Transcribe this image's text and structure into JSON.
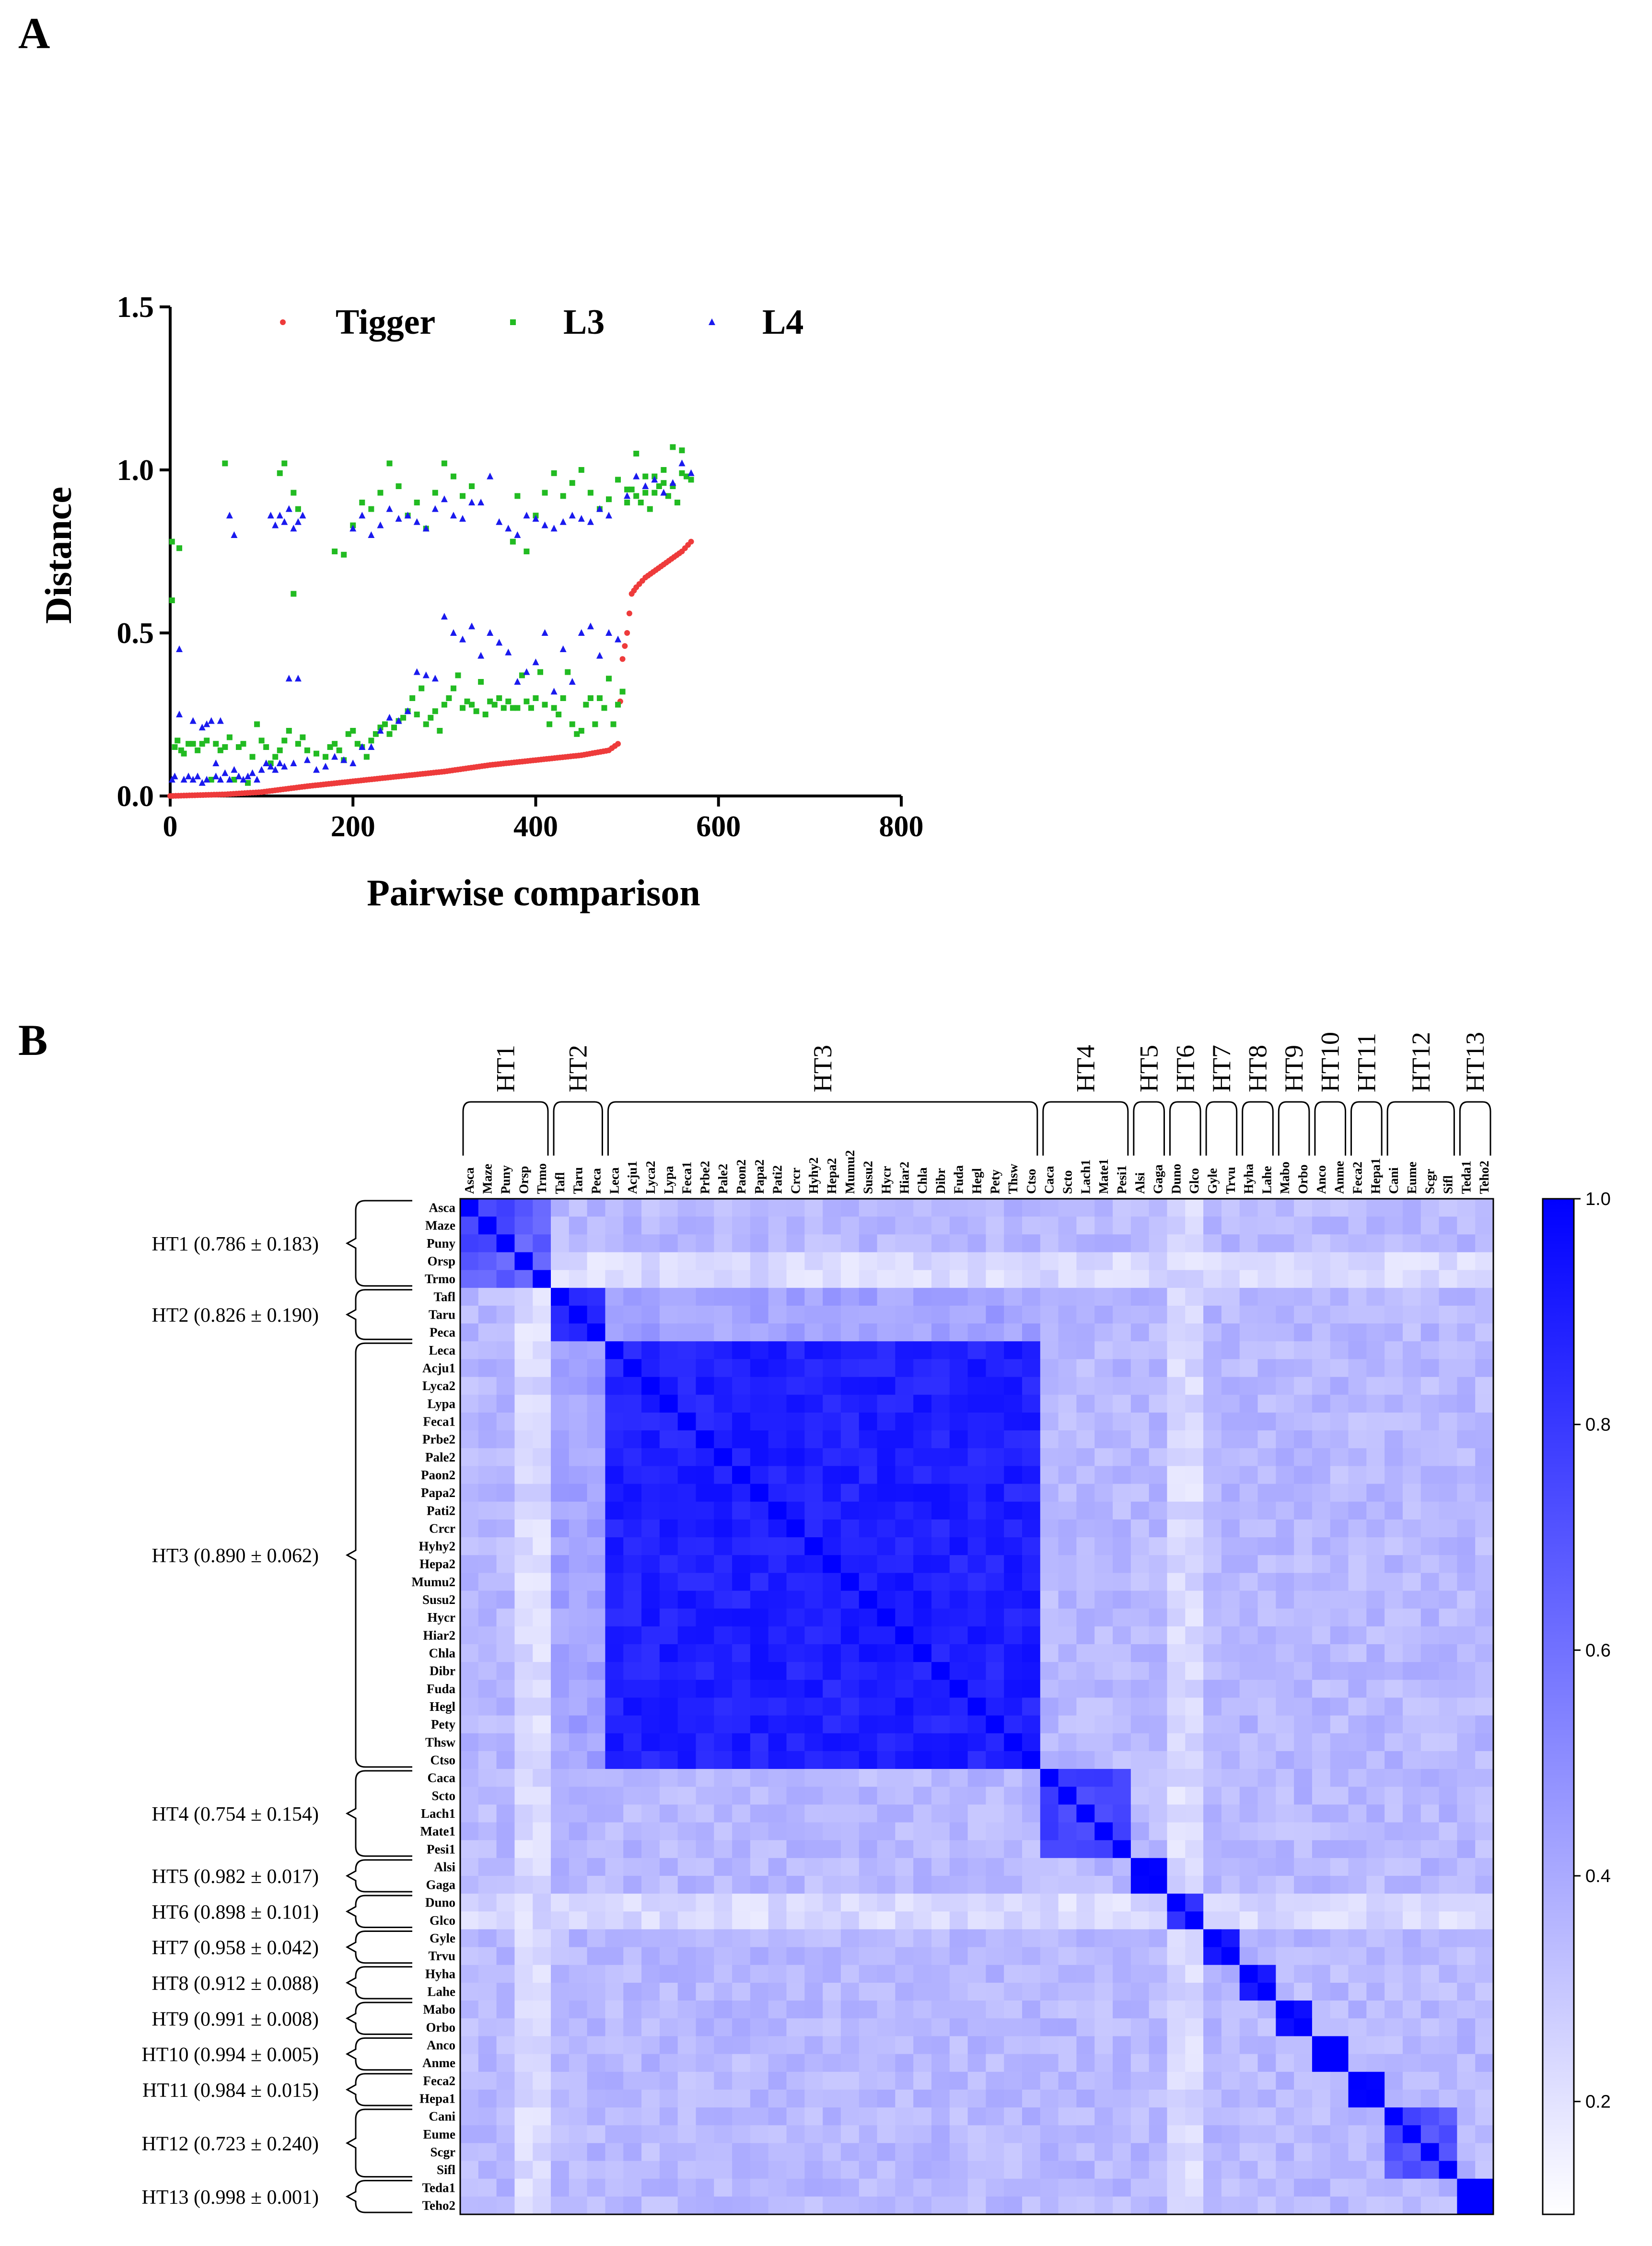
{
  "panel_labels": {
    "a": "A",
    "b": "B"
  },
  "chart_data": [
    {
      "type": "scatter",
      "title": "",
      "xlabel": "Pairwise comparison",
      "ylabel": "Distance",
      "xlim": [
        0,
        800
      ],
      "ylim": [
        0,
        1.5
      ],
      "x_ticks": [
        0,
        200,
        400,
        600,
        800
      ],
      "y_ticks": [
        0.0,
        0.5,
        1.0,
        1.5
      ],
      "x_tick_labels": [
        "0",
        "200",
        "400",
        "600",
        "800"
      ],
      "y_tick_labels": [
        "0.0",
        "0.5",
        "1.0",
        "1.5"
      ],
      "legend_position": "top",
      "series": [
        {
          "name": "Tigger",
          "color": "#ee3b3b",
          "marker": "circle",
          "note": "monotonic increasing curve, ~570 points",
          "x": [
            0,
            60,
            100,
            150,
            200,
            250,
            300,
            350,
            400,
            450,
            480,
            490,
            495,
            500,
            505,
            510,
            520,
            540,
            560,
            570
          ],
          "y": [
            0.0,
            0.005,
            0.012,
            0.03,
            0.045,
            0.06,
            0.075,
            0.095,
            0.11,
            0.125,
            0.14,
            0.16,
            0.42,
            0.5,
            0.62,
            0.64,
            0.67,
            0.71,
            0.75,
            0.78
          ]
        },
        {
          "name": "L3",
          "color": "#22bb22",
          "marker": "square",
          "x": [
            2,
            5,
            8,
            12,
            15,
            20,
            25,
            30,
            35,
            40,
            45,
            50,
            55,
            60,
            65,
            70,
            75,
            80,
            85,
            90,
            95,
            100,
            105,
            110,
            115,
            120,
            125,
            130,
            135,
            140,
            145,
            150,
            160,
            170,
            175,
            180,
            185,
            190,
            195,
            200,
            205,
            210,
            215,
            220,
            225,
            230,
            235,
            240,
            245,
            250,
            255,
            260,
            265,
            270,
            275,
            280,
            285,
            290,
            295,
            300,
            305,
            310,
            315,
            320,
            325,
            330,
            335,
            340,
            345,
            350,
            355,
            360,
            365,
            370,
            375,
            380,
            385,
            390,
            395,
            400,
            405,
            410,
            415,
            420,
            425,
            430,
            435,
            440,
            445,
            450,
            455,
            460,
            465,
            470,
            475,
            480,
            485,
            490,
            495,
            500,
            505,
            510,
            515,
            520,
            525,
            530,
            535,
            540,
            545,
            550,
            555,
            560,
            565,
            570,
            2,
            10,
            60,
            120,
            125,
            135,
            140,
            180,
            190,
            200,
            210,
            220,
            230,
            240,
            250,
            260,
            270,
            280,
            290,
            300,
            310,
            320,
            330,
            375,
            380,
            390,
            400,
            410,
            420,
            430,
            440,
            450,
            460,
            470,
            480,
            490,
            500,
            510,
            520,
            530,
            540,
            550,
            560
          ],
          "y": [
            0.6,
            0.15,
            0.17,
            0.14,
            0.13,
            0.16,
            0.16,
            0.14,
            0.16,
            0.17,
            0.05,
            0.16,
            0.14,
            0.15,
            0.18,
            0.05,
            0.15,
            0.16,
            0.04,
            0.12,
            0.22,
            0.17,
            0.15,
            0.1,
            0.12,
            0.14,
            0.17,
            0.2,
            0.62,
            0.16,
            0.18,
            0.14,
            0.13,
            0.12,
            0.15,
            0.16,
            0.14,
            0.11,
            0.19,
            0.2,
            0.16,
            0.15,
            0.12,
            0.17,
            0.19,
            0.21,
            0.22,
            0.19,
            0.21,
            0.23,
            0.24,
            0.26,
            0.3,
            0.25,
            0.33,
            0.22,
            0.24,
            0.26,
            0.2,
            0.28,
            0.3,
            0.33,
            0.37,
            0.27,
            0.29,
            0.28,
            0.26,
            0.35,
            0.25,
            0.29,
            0.28,
            0.3,
            0.27,
            0.29,
            0.27,
            0.27,
            0.37,
            0.29,
            0.27,
            0.3,
            0.38,
            0.28,
            0.22,
            0.27,
            0.25,
            0.3,
            0.38,
            0.22,
            0.19,
            0.2,
            0.28,
            0.3,
            0.22,
            0.3,
            0.27,
            0.36,
            0.22,
            0.28,
            0.32,
            0.9,
            0.94,
            0.92,
            0.9,
            0.98,
            0.88,
            0.93,
            0.95,
            0.96,
            0.92,
            1.07,
            0.9,
            1.06,
            0.98,
            0.97,
            0.78,
            0.76,
            1.02,
            0.99,
            1.02,
            0.93,
            0.88,
            0.75,
            0.74,
            0.83,
            0.9,
            0.88,
            0.93,
            1.02,
            0.95,
            0.86,
            0.9,
            0.82,
            0.93,
            1.02,
            0.98,
            0.92,
            0.95,
            0.78,
            0.92,
            0.75,
            0.86,
            0.93,
            0.99,
            0.92,
            0.96,
            1.0,
            0.93,
            0.88,
            0.91,
            0.97,
            0.94,
            1.05,
            0.93,
            0.98,
            1.0,
            0.95,
            0.99
          ]
        },
        {
          "name": "L4",
          "color": "#1a1aee",
          "marker": "triangle",
          "x": [
            2,
            5,
            10,
            15,
            20,
            25,
            30,
            35,
            40,
            45,
            50,
            55,
            60,
            65,
            70,
            75,
            80,
            85,
            90,
            95,
            100,
            105,
            110,
            115,
            120,
            125,
            130,
            135,
            140,
            150,
            160,
            170,
            180,
            190,
            200,
            210,
            220,
            230,
            240,
            250,
            260,
            270,
            280,
            290,
            300,
            310,
            320,
            330,
            340,
            350,
            360,
            370,
            380,
            390,
            400,
            410,
            420,
            430,
            440,
            450,
            460,
            470,
            480,
            490,
            500,
            510,
            520,
            530,
            540,
            550,
            560,
            570,
            10,
            25,
            35,
            40,
            50,
            55,
            65,
            70,
            110,
            115,
            120,
            125,
            130,
            135,
            140,
            145,
            200,
            210,
            220,
            230,
            240,
            250,
            260,
            270,
            280,
            290,
            300,
            310,
            320,
            330,
            340,
            350,
            360,
            370,
            380,
            390,
            400,
            410,
            420,
            430,
            440,
            450,
            460,
            470,
            480
          ],
          "y": [
            0.05,
            0.06,
            0.25,
            0.05,
            0.06,
            0.05,
            0.06,
            0.04,
            0.05,
            0.23,
            0.06,
            0.05,
            0.07,
            0.05,
            0.08,
            0.06,
            0.05,
            0.06,
            0.07,
            0.05,
            0.08,
            0.1,
            0.09,
            0.08,
            0.1,
            0.09,
            0.36,
            0.1,
            0.36,
            0.11,
            0.08,
            0.09,
            0.12,
            0.11,
            0.1,
            0.15,
            0.15,
            0.2,
            0.24,
            0.23,
            0.26,
            0.38,
            0.37,
            0.36,
            0.55,
            0.5,
            0.48,
            0.52,
            0.43,
            0.5,
            0.47,
            0.44,
            0.35,
            0.38,
            0.41,
            0.5,
            0.32,
            0.45,
            0.35,
            0.5,
            0.52,
            0.43,
            0.5,
            0.48,
            0.92,
            0.98,
            0.95,
            0.97,
            0.93,
            0.96,
            1.02,
            0.99,
            0.45,
            0.23,
            0.21,
            0.22,
            0.1,
            0.23,
            0.86,
            0.8,
            0.86,
            0.83,
            0.86,
            0.84,
            0.88,
            0.82,
            0.84,
            0.86,
            0.82,
            0.86,
            0.8,
            0.83,
            0.88,
            0.85,
            0.86,
            0.84,
            0.82,
            0.88,
            0.91,
            0.86,
            0.85,
            0.9,
            0.9,
            0.98,
            0.84,
            0.82,
            0.8,
            0.86,
            0.85,
            0.83,
            0.82,
            0.84,
            0.86,
            0.85,
            0.84,
            0.88,
            0.86
          ]
        }
      ],
      "legend": [
        "Tigger",
        "L3",
        "L4"
      ]
    },
    {
      "type": "heatmap",
      "title": "",
      "colorscale": {
        "min": 0.1,
        "max": 1.0,
        "low_color": "#ffffff",
        "high_color": "#0000ff"
      },
      "colorbar_ticks": [
        0.2,
        0.4,
        0.6,
        0.8,
        1.0
      ],
      "colorbar_tick_labels": [
        "0.2",
        "0.4",
        "0.6",
        "0.8",
        "1.0"
      ],
      "species": [
        "Asca",
        "Maze",
        "Puny",
        "Orsp",
        "Trmo",
        "Tafl",
        "Taru",
        "Peca",
        "Leca",
        "Acju1",
        "Lyca2",
        "Lypa",
        "Feca1",
        "Prbe2",
        "Pale2",
        "Paon2",
        "Papa2",
        "Pati2",
        "Crcr",
        "Hyhy2",
        "Hepa2",
        "Mumu2",
        "Susu2",
        "Hycr",
        "Hiar2",
        "Chla",
        "Dibr",
        "Fuda",
        "Hegl",
        "Pety",
        "Thsw",
        "Ctso",
        "Caca",
        "Scto",
        "Lach1",
        "Mate1",
        "Pesi1",
        "Alsi",
        "Gaga",
        "Duno",
        "Glco",
        "Gyle",
        "Trvu",
        "Hyha",
        "Lahe",
        "Mabo",
        "Orbo",
        "Anco",
        "Anme",
        "Feca2",
        "Hepa1",
        "Cani",
        "Eume",
        "Scgr",
        "Sifl",
        "Teda1",
        "Teho2"
      ],
      "groups": [
        {
          "name": "HT1",
          "start": 0,
          "end": 4,
          "stat": "HT1 (0.786 ± 0.183)"
        },
        {
          "name": "HT2",
          "start": 5,
          "end": 7,
          "stat": "HT2 (0.826 ± 0.190)"
        },
        {
          "name": "HT3",
          "start": 8,
          "end": 31,
          "stat": "HT3 (0.890 ± 0.062)"
        },
        {
          "name": "HT4",
          "start": 32,
          "end": 36,
          "stat": "HT4 (0.754 ± 0.154)"
        },
        {
          "name": "HT5",
          "start": 37,
          "end": 38,
          "stat": "HT5 (0.982 ± 0.017)"
        },
        {
          "name": "HT6",
          "start": 39,
          "end": 40,
          "stat": "HT6 (0.898 ± 0.101)"
        },
        {
          "name": "HT7",
          "start": 41,
          "end": 42,
          "stat": "HT7 (0.958 ± 0.042)"
        },
        {
          "name": "HT8",
          "start": 43,
          "end": 44,
          "stat": "HT8 (0.912 ± 0.088)"
        },
        {
          "name": "HT9",
          "start": 45,
          "end": 46,
          "stat": "HT9 (0.991 ± 0.008)"
        },
        {
          "name": "HT10",
          "start": 47,
          "end": 48,
          "stat": "HT10 (0.994 ± 0.005)"
        },
        {
          "name": "HT11",
          "start": 49,
          "end": 50,
          "stat": "HT11 (0.984 ± 0.015)"
        },
        {
          "name": "HT12",
          "start": 51,
          "end": 54,
          "stat": "HT12 (0.723 ± 0.240)"
        },
        {
          "name": "HT13",
          "start": 55,
          "end": 56,
          "stat": "HT13 (0.998 ± 0.001)"
        }
      ],
      "within_group_mean": [
        0.786,
        0.826,
        0.89,
        0.754,
        0.982,
        0.898,
        0.958,
        0.912,
        0.991,
        0.994,
        0.984,
        0.723,
        0.998
      ],
      "between_group_typical": 0.35,
      "low_similarity_species": [
        "Orsp",
        "Trmo",
        "Duno",
        "Glco"
      ]
    }
  ]
}
